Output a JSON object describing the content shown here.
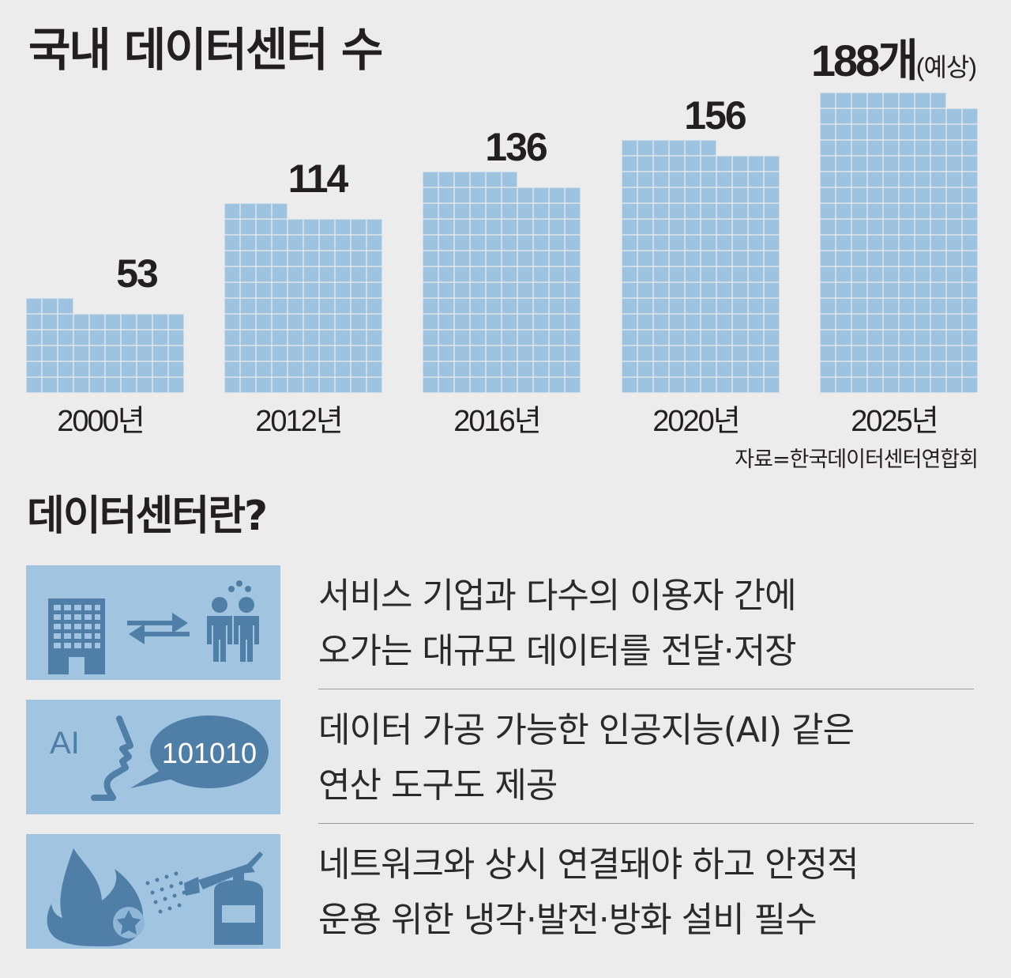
{
  "title": "국내 데이터센터 수",
  "chart_data": {
    "type": "bar",
    "title": "국내 데이터센터 수",
    "unit": "개",
    "categories": [
      "2000년",
      "2012년",
      "2016년",
      "2020년",
      "2025년"
    ],
    "values": [
      53,
      114,
      136,
      156,
      188
    ],
    "value_labels": [
      "53",
      "114",
      "136",
      "156",
      "188개"
    ],
    "value_label_suffixes": [
      "",
      "",
      "",
      "",
      "(예상)"
    ],
    "units_per_row": 10,
    "grid": false,
    "legend": "none",
    "color": "#9ec3e1"
  },
  "source": "자료=한국데이터센터연합회",
  "section_title": "데이터센터란?",
  "features": [
    {
      "icon": "building-data-exchange-icon",
      "lines": [
        "서비스 기업과 다수의 이용자 간에",
        "오가는 대규모 데이터를 전달·저장"
      ]
    },
    {
      "icon": "ai-speech-icon",
      "icon_text_ai": "AI",
      "icon_text_binary": "101010",
      "lines": [
        "데이터 가공 가능한 인공지능(AI) 같은",
        "연산 도구도 제공"
      ]
    },
    {
      "icon": "fire-extinguisher-icon",
      "lines": [
        "네트워크와 상시 연결돼야 하고 안정적",
        "운용 위한 냉각·발전·방화 설비 필수"
      ]
    }
  ],
  "colors": {
    "background": "#ececec",
    "bar": "#9ec3e1",
    "icon_panel": "#a1c4e0",
    "icon": "#4f7ea6",
    "text": "#231f20"
  }
}
